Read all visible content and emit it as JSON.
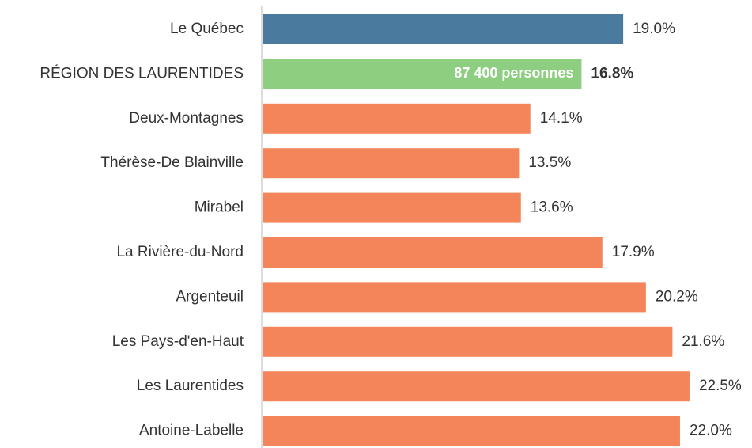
{
  "chart_data": {
    "type": "bar",
    "orientation": "horizontal",
    "categories": [
      "Le Québec",
      "RÉGION DES LAURENTIDES",
      "Deux-Montagnes",
      "Thérèse-De Blainville",
      "Mirabel",
      "La Rivière-du-Nord",
      "Argenteuil",
      "Les Pays-d'en-Haut",
      "Les Laurentides",
      "Antoine-Labelle"
    ],
    "values": [
      19.0,
      16.8,
      14.1,
      13.5,
      13.6,
      17.9,
      20.2,
      21.6,
      22.5,
      22.0
    ],
    "value_labels": [
      "19.0%",
      "16.8%",
      "14.1%",
      "13.5%",
      "13.6%",
      "17.9%",
      "20.2%",
      "21.6%",
      "22.5%",
      "22.0%"
    ],
    "colors": [
      "#4a7a9d",
      "#8dce80",
      "#f4855a",
      "#f4855a",
      "#f4855a",
      "#f4855a",
      "#f4855a",
      "#f4855a",
      "#f4855a",
      "#f4855a"
    ],
    "bold": [
      false,
      true,
      false,
      false,
      false,
      false,
      false,
      false,
      false,
      false
    ],
    "annotation": "87 400 personnes",
    "xlim": [
      0,
      25.8
    ]
  }
}
